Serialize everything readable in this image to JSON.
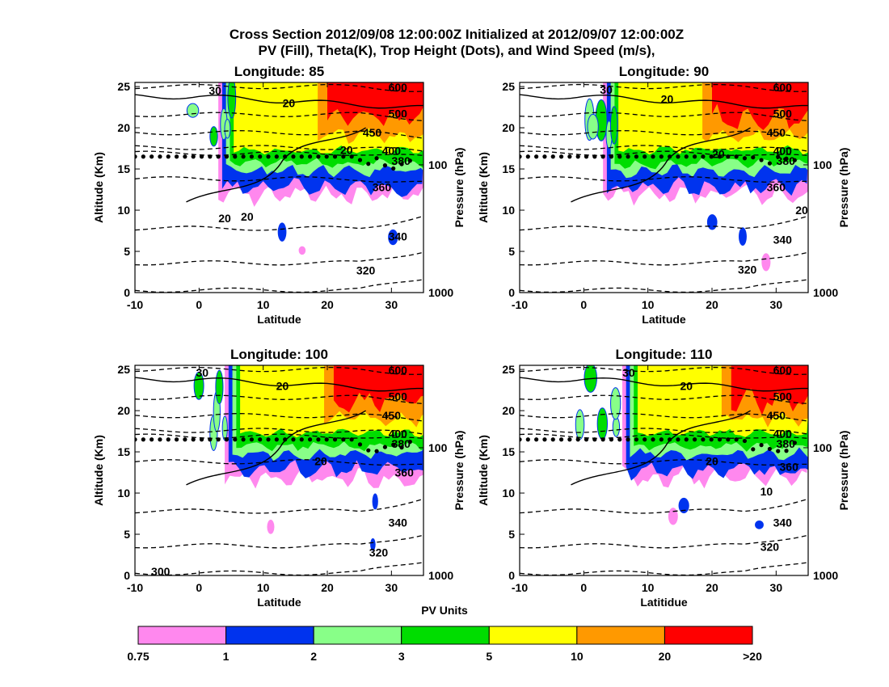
{
  "title_line1": "Cross Section 2012/09/08 12:00:00Z Initialized at 2012/09/07 12:00:00Z",
  "title_line2": "PV (Fill), Theta(K), Trop Height (Dots), and Wind Speed (m/s),",
  "colorbar": {
    "title": "PV Units",
    "tick_labels": [
      "0.75",
      "1",
      "2",
      "3",
      "5",
      "10",
      "20",
      ">20"
    ],
    "colors": [
      "#ff88ee",
      "#0033ee",
      "#88ff88",
      "#00dd00",
      "#ffff00",
      "#ff9900",
      "#ff0000"
    ]
  },
  "chart_data": [
    {
      "type": "contour",
      "title": "Longitude:  85",
      "xlabel": "Latitude",
      "ylabel": "Altitude (Km)",
      "ylabel_right": "Pressure (hPa)",
      "xlim": [
        -10,
        35
      ],
      "ylim": [
        0,
        25.5
      ],
      "x_ticks": [
        -10,
        0,
        10,
        20,
        30
      ],
      "y_ticks": [
        0,
        5,
        10,
        15,
        20,
        25
      ],
      "pressure_ticks": [
        {
          "label": "100",
          "alt": 15.5
        },
        {
          "label": "1000",
          "alt": 0
        }
      ],
      "tropopause_alt": 16.5,
      "theta_labels": [
        {
          "text": "600",
          "x": 31,
          "y": 24.9
        },
        {
          "text": "500",
          "x": 31,
          "y": 21.7
        },
        {
          "text": "450",
          "x": 27,
          "y": 19.4
        },
        {
          "text": "400",
          "x": 30,
          "y": 17.2
        },
        {
          "text": "380",
          "x": 31.5,
          "y": 16.0
        },
        {
          "text": "360",
          "x": 28.5,
          "y": 12.8
        },
        {
          "text": "340",
          "x": 31,
          "y": 6.8
        },
        {
          "text": "320",
          "x": 26,
          "y": 2.7
        }
      ],
      "wind_labels": [
        {
          "text": "30",
          "x": 2.5,
          "y": 24.5
        },
        {
          "text": "20",
          "x": 14,
          "y": 23.0
        },
        {
          "text": "20",
          "x": 23,
          "y": 17.3
        },
        {
          "text": "20",
          "x": 7.5,
          "y": 9.2
        },
        {
          "text": "20",
          "x": 4,
          "y": 9.0
        }
      ]
    },
    {
      "type": "contour",
      "title": "Longitude:  90",
      "xlabel": "Latitude",
      "ylabel": "Altitude (Km)",
      "ylabel_right": "Pressure (hPa)",
      "xlim": [
        -10,
        35
      ],
      "ylim": [
        0,
        25.5
      ],
      "x_ticks": [
        -10,
        0,
        10,
        20,
        30
      ],
      "y_ticks": [
        0,
        5,
        10,
        15,
        20,
        25
      ],
      "pressure_ticks": [
        {
          "label": "100",
          "alt": 15.5
        },
        {
          "label": "1000",
          "alt": 0
        }
      ],
      "tropopause_alt": 16.5,
      "theta_labels": [
        {
          "text": "600",
          "x": 31,
          "y": 24.9
        },
        {
          "text": "500",
          "x": 31,
          "y": 21.7
        },
        {
          "text": "450",
          "x": 30,
          "y": 19.4
        },
        {
          "text": "400",
          "x": 31,
          "y": 17.2
        },
        {
          "text": "380",
          "x": 31.5,
          "y": 16.0
        },
        {
          "text": "360",
          "x": 30,
          "y": 12.8
        },
        {
          "text": "340",
          "x": 31,
          "y": 6.4
        },
        {
          "text": "320",
          "x": 25.5,
          "y": 2.8
        }
      ],
      "wind_labels": [
        {
          "text": "30",
          "x": 3.5,
          "y": 24.6
        },
        {
          "text": "20",
          "x": 13,
          "y": 23.5
        },
        {
          "text": "20",
          "x": 21,
          "y": 16.8
        },
        {
          "text": "20",
          "x": 34,
          "y": 10.0
        }
      ]
    },
    {
      "type": "contour",
      "title": "Longitude: 100",
      "xlabel": "Latitude",
      "ylabel": "Altitude (Km)",
      "ylabel_right": "Pressure (hPa)",
      "xlim": [
        -10,
        35
      ],
      "ylim": [
        0,
        25.5
      ],
      "x_ticks": [
        -10,
        0,
        10,
        20,
        30
      ],
      "y_ticks": [
        0,
        5,
        10,
        15,
        20,
        25
      ],
      "pressure_ticks": [
        {
          "label": "100",
          "alt": 15.5
        },
        {
          "label": "1000",
          "alt": 0
        }
      ],
      "tropopause_alt": 16.5,
      "theta_labels": [
        {
          "text": "600",
          "x": 31,
          "y": 24.9
        },
        {
          "text": "500",
          "x": 31,
          "y": 21.7
        },
        {
          "text": "450",
          "x": 30,
          "y": 19.4
        },
        {
          "text": "400",
          "x": 31,
          "y": 17.2
        },
        {
          "text": "380",
          "x": 31.5,
          "y": 16.0
        },
        {
          "text": "360",
          "x": 32,
          "y": 12.5
        },
        {
          "text": "340",
          "x": 31,
          "y": 6.4
        },
        {
          "text": "320",
          "x": 28,
          "y": 2.8
        },
        {
          "text": "300",
          "x": -6,
          "y": 0.5
        }
      ],
      "wind_labels": [
        {
          "text": "30",
          "x": 0.5,
          "y": 24.6
        },
        {
          "text": "20",
          "x": 13,
          "y": 23.0
        },
        {
          "text": "20",
          "x": 19,
          "y": 13.9
        }
      ]
    },
    {
      "type": "contour",
      "title": "Longitude:  110",
      "xlabel": "Latitidue",
      "ylabel": "Altitude (Km)",
      "ylabel_right": "Pressure (hPa)",
      "xlim": [
        -10,
        35
      ],
      "ylim": [
        0,
        25.5
      ],
      "x_ticks": [
        -10,
        0,
        10,
        20,
        30
      ],
      "y_ticks": [
        0,
        5,
        10,
        15,
        20,
        25
      ],
      "pressure_ticks": [
        {
          "label": "100",
          "alt": 15.5
        },
        {
          "label": "1000",
          "alt": 0
        }
      ],
      "tropopause_alt": 16.5,
      "theta_labels": [
        {
          "text": "600",
          "x": 31,
          "y": 24.9
        },
        {
          "text": "500",
          "x": 31,
          "y": 21.7
        },
        {
          "text": "450",
          "x": 30,
          "y": 19.4
        },
        {
          "text": "400",
          "x": 31,
          "y": 17.2
        },
        {
          "text": "380",
          "x": 31.5,
          "y": 16.0
        },
        {
          "text": "360",
          "x": 32,
          "y": 13.2
        },
        {
          "text": "340",
          "x": 31,
          "y": 6.4
        },
        {
          "text": "320",
          "x": 29,
          "y": 3.5
        }
      ],
      "wind_labels": [
        {
          "text": "30",
          "x": 7,
          "y": 24.6
        },
        {
          "text": "20",
          "x": 16,
          "y": 23.0
        },
        {
          "text": "20",
          "x": 20,
          "y": 13.9
        },
        {
          "text": "10",
          "x": 28.5,
          "y": 10.2
        }
      ]
    }
  ]
}
